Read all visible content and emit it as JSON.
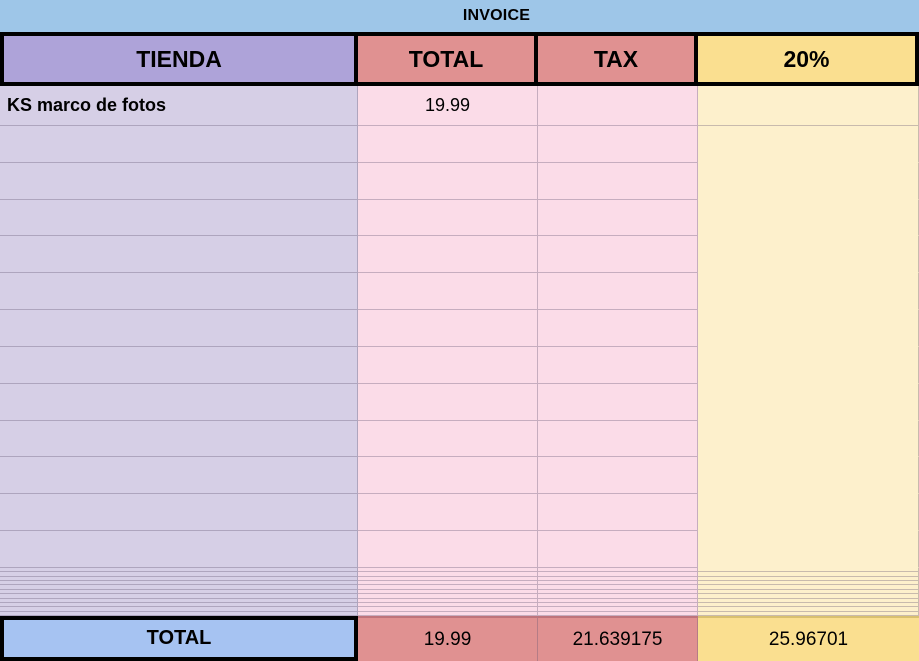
{
  "title": "INVOICE",
  "header": {
    "columns": [
      "TIENDA",
      "TOTAL",
      "TAX",
      "20%"
    ]
  },
  "rows": [
    {
      "tienda": "KS marco de fotos",
      "total": "19.99",
      "tax": "",
      "pct": ""
    }
  ],
  "empty_row_count": 12,
  "thin_row_count": 11,
  "footer": {
    "label": "TOTAL",
    "total": "19.99",
    "tax": "21.639175",
    "pct": "25.96701"
  },
  "colors": {
    "top_blue": "#9ec6e8",
    "header_purple": "#aea3d9",
    "salmon": "#e09191",
    "header_yellow": "#fadf90",
    "body_purple": "#d6cfe6",
    "body_pink": "#fbdce8",
    "body_yellow": "#fdf0cc",
    "footer_blue": "#a6c3f2",
    "grid_line": "rgba(100,85,115,0.35)"
  }
}
